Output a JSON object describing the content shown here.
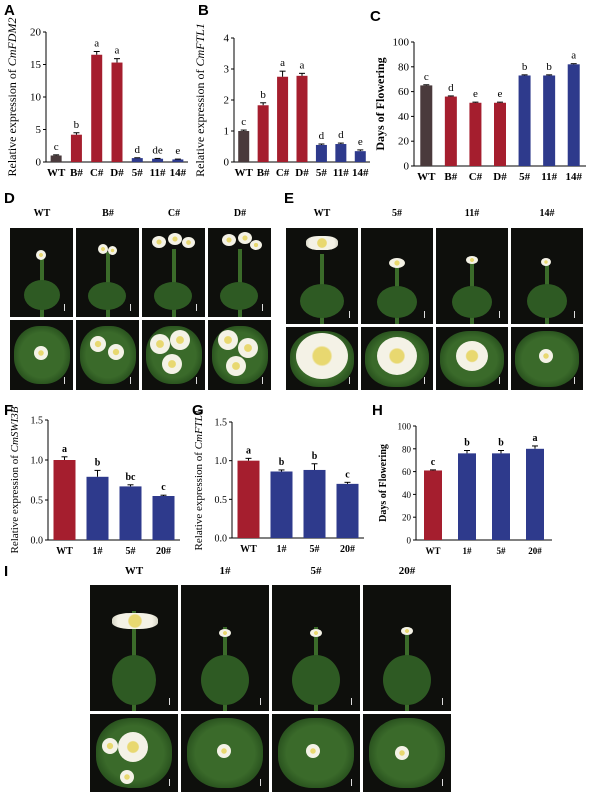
{
  "panels": {
    "A": "A",
    "B": "B",
    "C": "C",
    "D": "D",
    "E": "E",
    "F": "F",
    "G": "G",
    "H": "H",
    "I": "I"
  },
  "chart_data": [
    {
      "id": "A",
      "type": "bar",
      "categories": [
        "WT",
        "B#",
        "C#",
        "D#",
        "5#",
        "11#",
        "14#"
      ],
      "values": [
        1.0,
        4.2,
        16.5,
        15.3,
        0.6,
        0.5,
        0.4
      ],
      "errors": [
        0.1,
        0.3,
        0.5,
        0.6,
        0.05,
        0.05,
        0.05
      ],
      "letters": [
        "c",
        "b",
        "a",
        "a",
        "d",
        "de",
        "e"
      ],
      "colors": [
        "#4a3a3c",
        "#a51e2e",
        "#a51e2e",
        "#a51e2e",
        "#2e3a8c",
        "#2e3a8c",
        "#2e3a8c"
      ],
      "ylabel_prefix": "Relative expression of ",
      "ylabel_gene": "CmFDM2",
      "ylim": [
        0,
        20
      ],
      "yticks": [
        0,
        5,
        10,
        15,
        20
      ]
    },
    {
      "id": "B",
      "type": "bar",
      "categories": [
        "WT",
        "B#",
        "C#",
        "D#",
        "5#",
        "11#",
        "14#"
      ],
      "values": [
        1.0,
        1.83,
        2.75,
        2.78,
        0.55,
        0.58,
        0.35
      ],
      "errors": [
        0.03,
        0.08,
        0.18,
        0.08,
        0.03,
        0.03,
        0.04
      ],
      "letters": [
        "c",
        "b",
        "a",
        "a",
        "d",
        "d",
        "e"
      ],
      "colors": [
        "#4a3a3c",
        "#a51e2e",
        "#a51e2e",
        "#a51e2e",
        "#2e3a8c",
        "#2e3a8c",
        "#2e3a8c"
      ],
      "ylabel_prefix": "Relative expression of ",
      "ylabel_gene": "CmFTL1",
      "ylim": [
        0,
        4
      ],
      "yticks": [
        0,
        1,
        2,
        3,
        4
      ]
    },
    {
      "id": "C",
      "type": "bar",
      "categories": [
        "WT",
        "B#",
        "C#",
        "D#",
        "5#",
        "11#",
        "14#"
      ],
      "values": [
        65,
        56,
        51,
        51,
        73,
        73,
        82
      ],
      "errors": [
        0.5,
        0.5,
        0.5,
        0.5,
        0.5,
        0.5,
        0.5
      ],
      "letters": [
        "c",
        "d",
        "e",
        "e",
        "b",
        "b",
        "a"
      ],
      "colors": [
        "#4a3a3c",
        "#a51e2e",
        "#a51e2e",
        "#a51e2e",
        "#2e3a8c",
        "#2e3a8c",
        "#2e3a8c"
      ],
      "ylabel": "Days of Flowering",
      "ylim": [
        0,
        100
      ],
      "yticks": [
        0,
        20,
        40,
        60,
        80,
        100
      ]
    },
    {
      "id": "F",
      "type": "bar",
      "categories": [
        "WT",
        "1#",
        "5#",
        "20#"
      ],
      "values": [
        1.0,
        0.79,
        0.67,
        0.55
      ],
      "errors": [
        0.04,
        0.08,
        0.02,
        0.01
      ],
      "letters": [
        "a",
        "b",
        "bc",
        "c"
      ],
      "colors": [
        "#a51e2e",
        "#2e3a8c",
        "#2e3a8c",
        "#2e3a8c"
      ],
      "ylabel_prefix": "Relative expression of ",
      "ylabel_gene": "CmSWI3B",
      "ylim": [
        0,
        1.5
      ],
      "yticks": [
        0.0,
        0.5,
        1.0,
        1.5
      ]
    },
    {
      "id": "G",
      "type": "bar",
      "categories": [
        "WT",
        "1#",
        "5#",
        "20#"
      ],
      "values": [
        1.0,
        0.86,
        0.88,
        0.7
      ],
      "errors": [
        0.03,
        0.02,
        0.08,
        0.02
      ],
      "letters": [
        "a",
        "b",
        "b",
        "c"
      ],
      "colors": [
        "#a51e2e",
        "#2e3a8c",
        "#2e3a8c",
        "#2e3a8c"
      ],
      "ylabel_prefix": "Relative expression of ",
      "ylabel_gene": "CmFTL1",
      "ylim": [
        0,
        1.5
      ],
      "yticks": [
        0.0,
        0.5,
        1.0,
        1.5
      ]
    },
    {
      "id": "H",
      "type": "bar",
      "categories": [
        "WT",
        "1#",
        "5#",
        "20#"
      ],
      "values": [
        61,
        76,
        76,
        80
      ],
      "errors": [
        0.5,
        2.5,
        2.5,
        2.5
      ],
      "letters": [
        "c",
        "b",
        "b",
        "a"
      ],
      "colors": [
        "#a51e2e",
        "#2e3a8c",
        "#2e3a8c",
        "#2e3a8c"
      ],
      "ylabel": "Days of Flowering",
      "ylim": [
        0,
        100
      ],
      "yticks": [
        0,
        20,
        40,
        60,
        80,
        100
      ]
    }
  ],
  "photos": {
    "D": {
      "labels": [
        "WT",
        "B#",
        "C#",
        "D#"
      ]
    },
    "E": {
      "labels": [
        "WT",
        "5#",
        "11#",
        "14#"
      ]
    },
    "I": {
      "labels": [
        "WT",
        "1#",
        "5#",
        "20#"
      ]
    }
  }
}
